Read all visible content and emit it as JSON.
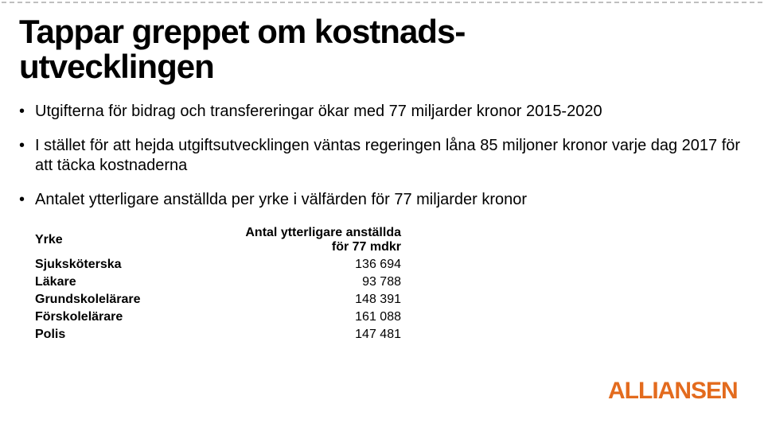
{
  "title_fontsize": 42,
  "title_line1": "Tappar greppet om kostnads-",
  "title_line2": "utvecklingen",
  "bullets_fontsize": 20,
  "bullets": [
    "Utgifterna för bidrag och transfereringar ökar med 77 miljarder kronor 2015-2020",
    "I stället för att hejda utgiftsutvecklingen väntas regeringen låna 85 miljoner kronor varje dag 2017 för att täcka kostnaderna",
    "Antalet ytterligare anställda per yrke i välfärden för 77 miljarder kronor"
  ],
  "table": {
    "header_fontsize": 16,
    "row_fontsize": 16,
    "col1_header": "Yrke",
    "col2_header": "Antal ytterligare anställda för 77 mdkr",
    "rows": [
      {
        "label": "Sjuksköterska",
        "value": "136 694"
      },
      {
        "label": "Läkare",
        "value": "93 788"
      },
      {
        "label": "Grundskolelärare",
        "value": "148 391"
      },
      {
        "label": "Förskolelärare",
        "value": "161 088"
      },
      {
        "label": "Polis",
        "value": "147 481"
      }
    ]
  },
  "logo": {
    "text": "ALLIANSEN",
    "color": "#e36b1e",
    "width": 170,
    "height": 44
  }
}
